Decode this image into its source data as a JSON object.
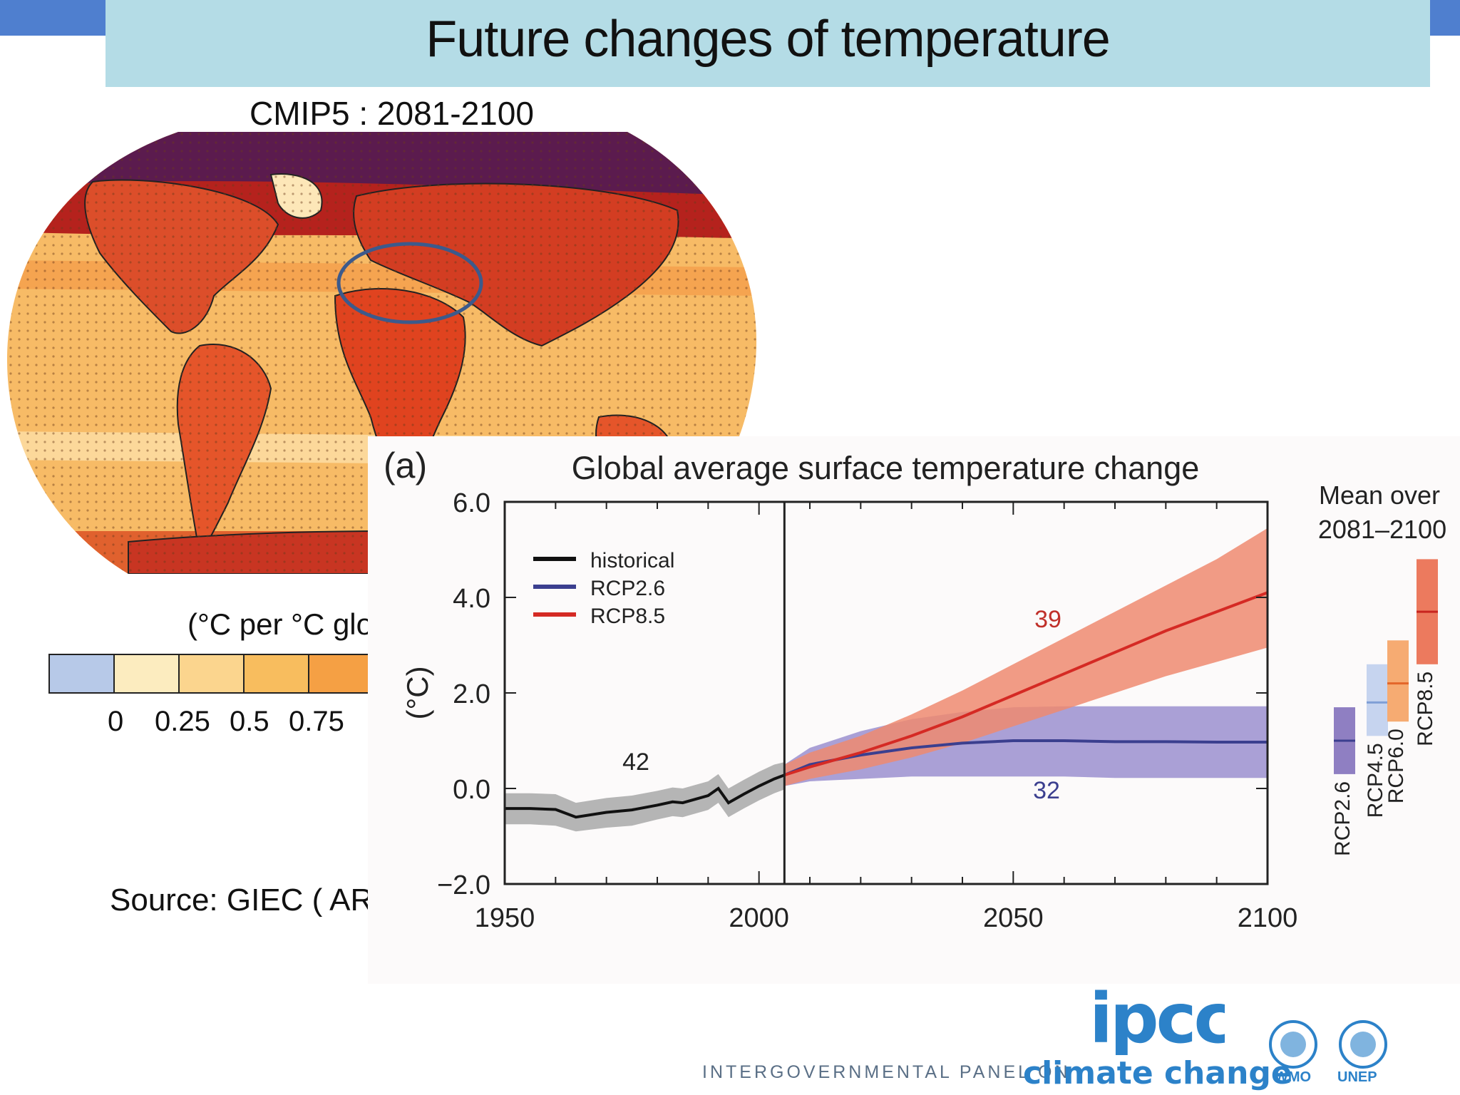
{
  "slide": {
    "title": "Future changes of temperature",
    "source": "Source: GIEC ( AR",
    "colors": {
      "title_bar": "#b4dce6",
      "accent": "#4f7fcf"
    }
  },
  "map": {
    "title": "CMIP5 : 2081-2100",
    "colorbar_label": "(°C per °C glob",
    "colorbar_ticks": [
      "0",
      "0.25",
      "0.5",
      "0.75"
    ],
    "colorbar_colors": [
      "#b7c9e8",
      "#fcecbf",
      "#fbd58e",
      "#f8bd5e",
      "#f5a044"
    ],
    "highlight": "ellipse around North Africa / Mediterranean"
  },
  "chart_data": {
    "type": "line",
    "panel_label": "(a)",
    "title": "Global average surface temperature change",
    "ylabel": "(°C)",
    "xlabel": "",
    "xlim": [
      1950,
      2100
    ],
    "ylim": [
      -2.0,
      6.0
    ],
    "x_ticks": [
      "1950",
      "2000",
      "2050",
      "2100"
    ],
    "y_ticks": [
      "6.0",
      "4.0",
      "2.0",
      "0.0",
      "−2.0"
    ],
    "legend_position": "top-left",
    "divider_x": 2005,
    "series": [
      {
        "name": "historical",
        "color": "#111111",
        "band_color": "#a8a8a8",
        "x": [
          1950,
          1955,
          1960,
          1964,
          1970,
          1975,
          1980,
          1983,
          1985,
          1990,
          1992,
          1994,
          1997,
          2000,
          2003,
          2005
        ],
        "values": [
          -0.42,
          -0.42,
          -0.44,
          -0.6,
          -0.5,
          -0.45,
          -0.35,
          -0.28,
          -0.3,
          -0.15,
          0.0,
          -0.3,
          -0.12,
          0.05,
          0.2,
          0.28
        ],
        "lower": [
          -0.75,
          -0.75,
          -0.78,
          -0.9,
          -0.82,
          -0.78,
          -0.65,
          -0.58,
          -0.6,
          -0.45,
          -0.3,
          -0.6,
          -0.42,
          -0.25,
          -0.1,
          -0.02
        ],
        "upper": [
          -0.1,
          -0.1,
          -0.12,
          -0.3,
          -0.2,
          -0.15,
          -0.05,
          0.02,
          0.0,
          0.15,
          0.3,
          0.0,
          0.18,
          0.35,
          0.5,
          0.55
        ],
        "annotation": "42"
      },
      {
        "name": "RCP2.6",
        "color": "#3b3f8f",
        "band_color": "#9b8fcf",
        "x": [
          2005,
          2010,
          2020,
          2030,
          2040,
          2050,
          2060,
          2070,
          2080,
          2090,
          2100
        ],
        "values": [
          0.28,
          0.5,
          0.7,
          0.85,
          0.95,
          1.0,
          1.0,
          0.98,
          0.98,
          0.97,
          0.97
        ],
        "lower": [
          0.05,
          0.15,
          0.2,
          0.25,
          0.25,
          0.25,
          0.25,
          0.22,
          0.22,
          0.22,
          0.22
        ],
        "upper": [
          0.5,
          0.85,
          1.2,
          1.45,
          1.6,
          1.7,
          1.72,
          1.72,
          1.72,
          1.72,
          1.72
        ],
        "annotation": "32"
      },
      {
        "name": "RCP8.5",
        "color": "#d52a24",
        "band_color": "#ee8a70",
        "x": [
          2005,
          2010,
          2020,
          2030,
          2040,
          2050,
          2060,
          2070,
          2080,
          2090,
          2100
        ],
        "values": [
          0.28,
          0.45,
          0.75,
          1.1,
          1.5,
          1.95,
          2.4,
          2.85,
          3.3,
          3.7,
          4.1
        ],
        "lower": [
          0.05,
          0.2,
          0.4,
          0.65,
          0.95,
          1.3,
          1.65,
          2.0,
          2.35,
          2.65,
          2.95
        ],
        "upper": [
          0.5,
          0.75,
          1.1,
          1.55,
          2.05,
          2.6,
          3.15,
          3.7,
          4.25,
          4.8,
          5.45
        ],
        "annotation": "39"
      }
    ],
    "side_panel": {
      "title_line1": "Mean over",
      "title_line2": "2081–2100",
      "bars": [
        {
          "name": "RCP2.6",
          "mean": 1.0,
          "low": 0.3,
          "high": 1.7,
          "color": "#3b3f8f",
          "fill": "#8f7fc2"
        },
        {
          "name": "RCP4.5",
          "mean": 1.8,
          "low": 1.1,
          "high": 2.6,
          "color": "#7f9fd6",
          "fill": "#c6d4ef"
        },
        {
          "name": "RCP6.0",
          "mean": 2.2,
          "low": 1.4,
          "high": 3.1,
          "color": "#e3662a",
          "fill": "#f6ab72"
        },
        {
          "name": "RCP8.5",
          "mean": 3.7,
          "low": 2.6,
          "high": 4.8,
          "color": "#c8251f",
          "fill": "#ec7a5e"
        }
      ]
    }
  },
  "logos": {
    "ipcc": "ipcc",
    "tagline": "INTERGOVERNMENTAL PANEL ON",
    "tagline_tail": "climate change",
    "wmo": "WMO",
    "unep": "UNEP"
  }
}
